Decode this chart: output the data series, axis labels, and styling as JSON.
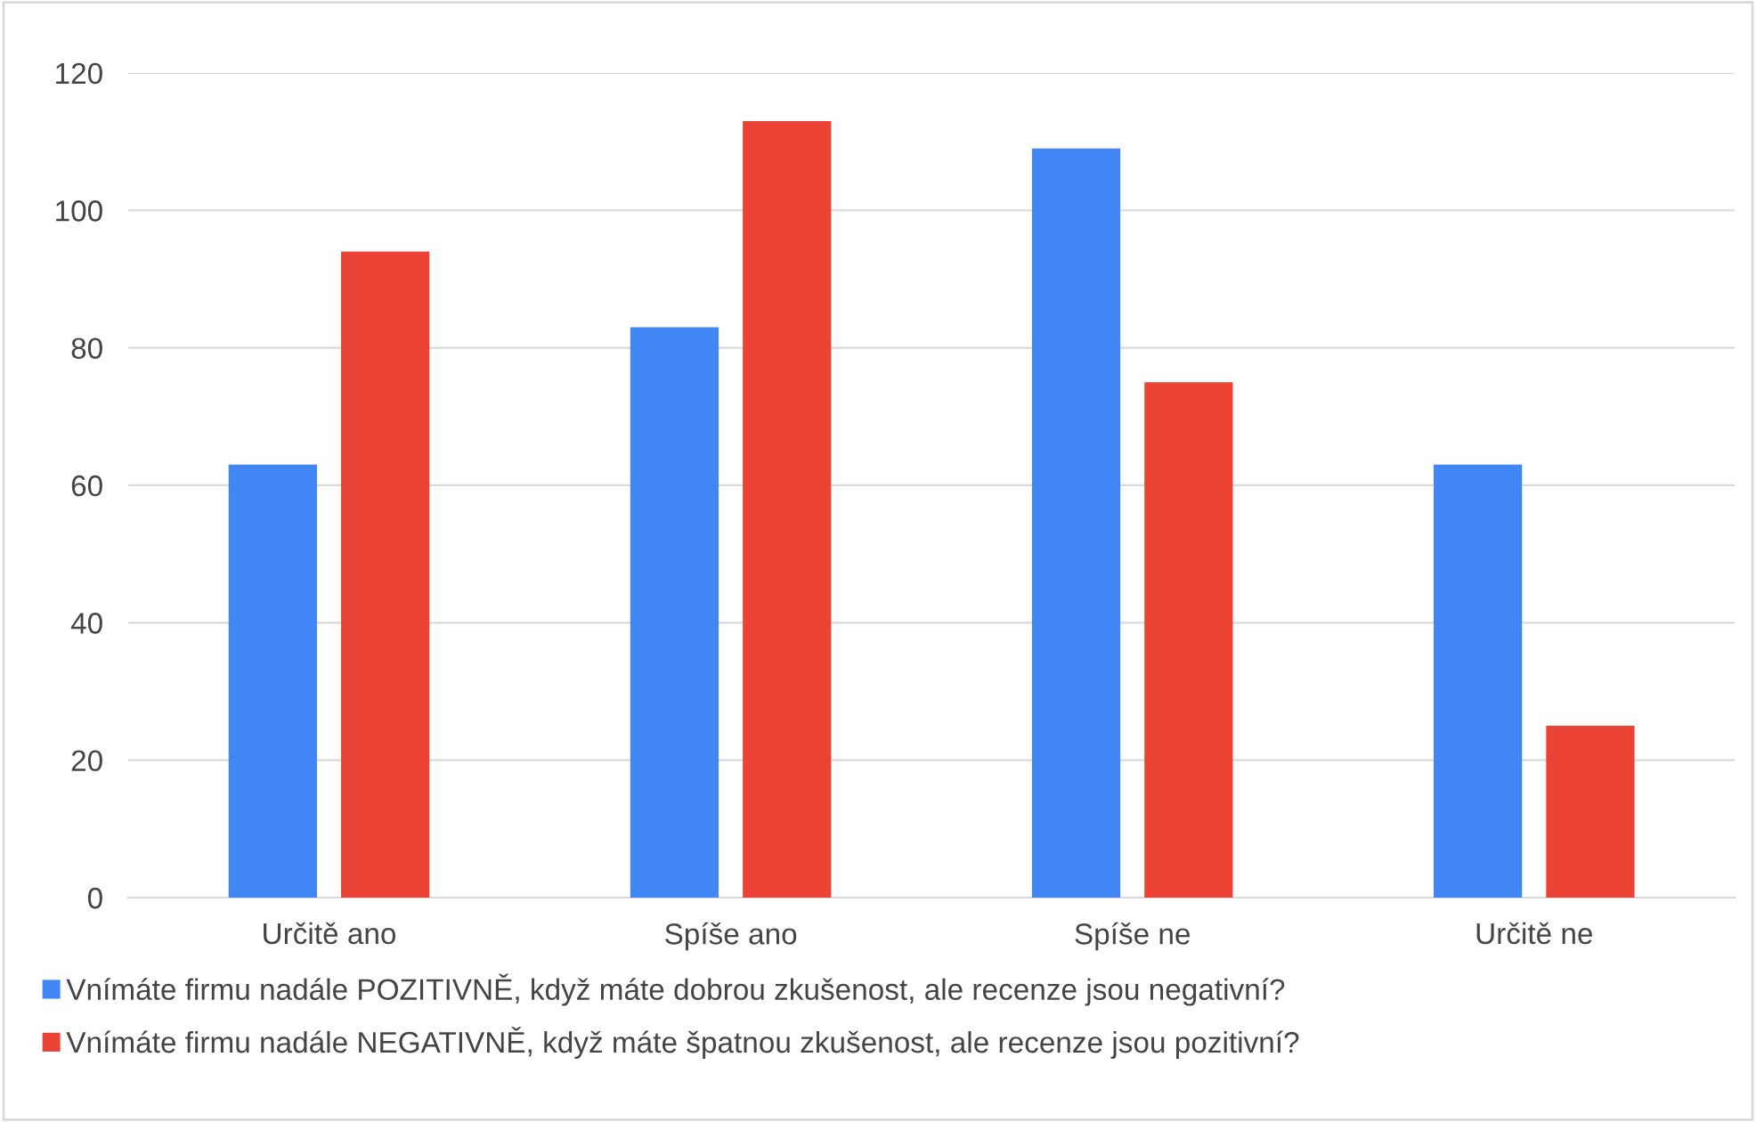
{
  "chart_data": {
    "type": "bar",
    "categories": [
      "Určitě ano",
      "Spíše ano",
      "Spíše ne",
      "Určitě ne"
    ],
    "series": [
      {
        "name": "Vnímáte firmu nadále POZITIVNĚ, když máte dobrou zkušenost, ale recenze jsou negativní?",
        "color": "#4285f4",
        "values": [
          63,
          83,
          109,
          63
        ]
      },
      {
        "name": "Vnímáte firmu nadále NEGATIVNĚ, když máte špatnou zkušenost, ale recenze jsou pozitivní?",
        "color": "#ea4335",
        "values": [
          94,
          113,
          75,
          25
        ]
      }
    ],
    "ylim": [
      0,
      120
    ],
    "yticks": [
      0,
      20,
      40,
      60,
      80,
      100,
      120
    ],
    "grid": "y",
    "legend": "bottom"
  }
}
